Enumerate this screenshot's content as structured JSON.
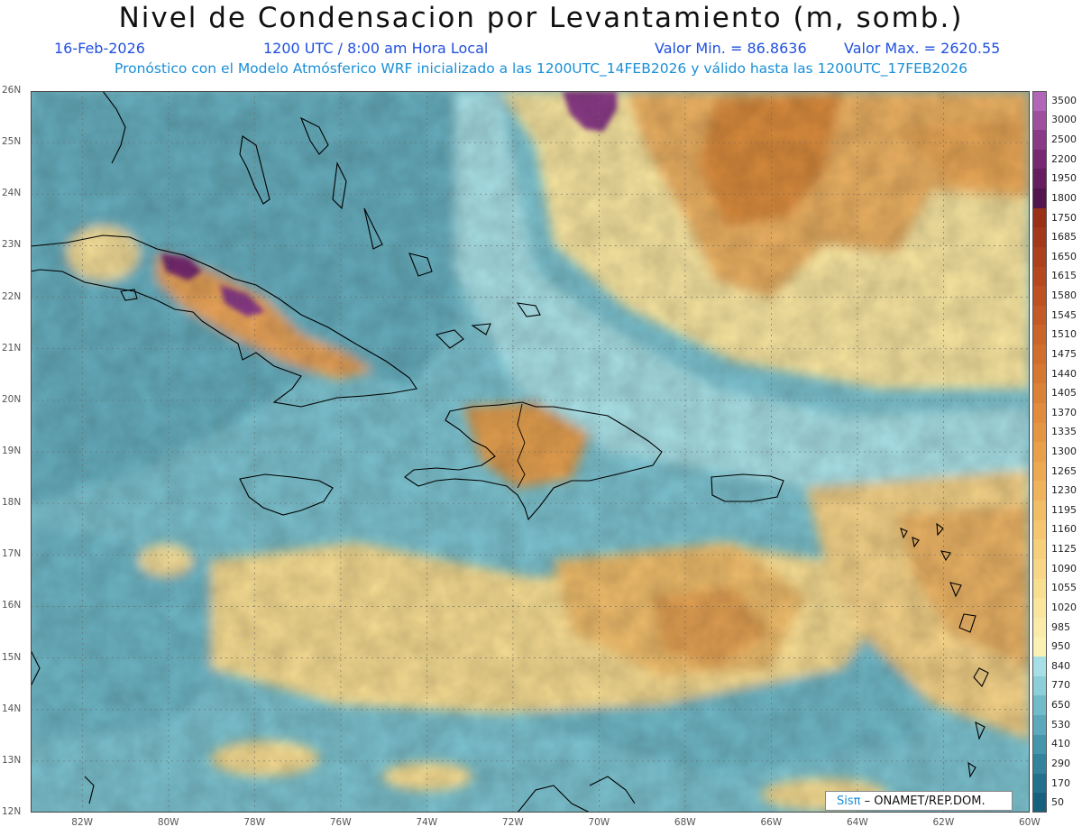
{
  "header": {
    "title": "Nivel de Condensacion por Levantamiento (m, somb.)",
    "date": "16-Feb-2026",
    "time": "1200 UTC / 8:00 am Hora Local",
    "min_label": "Valor Min. = 86.8636",
    "max_label": "Valor Max. = 2620.55",
    "subtitle": "Pronóstico con el Modelo Atmósferico WRF inicializado a las 1200UTC_14FEB2026 y válido hasta las  1200UTC_17FEB2026"
  },
  "map": {
    "lat_labels": [
      "26N",
      "25N",
      "24N",
      "23N",
      "22N",
      "21N",
      "20N",
      "19N",
      "18N",
      "17N",
      "16N",
      "15N",
      "14N",
      "13N",
      "12N"
    ],
    "lon_labels": [
      "82W",
      "80W",
      "78W",
      "76W",
      "74W",
      "72W",
      "70W",
      "68W",
      "66W",
      "64W",
      "62W",
      "60W"
    ],
    "lon_range": [
      -83.2,
      -60
    ],
    "lat_range": [
      12,
      26
    ],
    "gridlines": "dotted",
    "coastline_color": "#000000"
  },
  "colorbar": {
    "labels": [
      "3500",
      "3000",
      "2500",
      "2200",
      "1950",
      "1800",
      "1750",
      "1685",
      "1650",
      "1615",
      "1580",
      "1545",
      "1510",
      "1475",
      "1440",
      "1405",
      "1370",
      "1335",
      "1300",
      "1265",
      "1230",
      "1195",
      "1160",
      "1125",
      "1090",
      "1055",
      "1020",
      "985",
      "950",
      "840",
      "770",
      "650",
      "530",
      "410",
      "290",
      "170",
      "50"
    ],
    "colors": [
      "#b266b8",
      "#9e4f9e",
      "#8a3a87",
      "#772a72",
      "#651f60",
      "#521550",
      "#9b3019",
      "#a4381b",
      "#ad401d",
      "#b5481f",
      "#bd5122",
      "#c45a25",
      "#cb6428",
      "#d16e2c",
      "#d77830",
      "#dc8236",
      "#e18c3c",
      "#e59643",
      "#e9a04a",
      "#eca952",
      "#efb35b",
      "#f1bd65",
      "#f3c66f",
      "#f5cf7a",
      "#f7d785",
      "#f8df90",
      "#f9e69c",
      "#faeca8",
      "#fbf1b3",
      "#a6e0e6",
      "#8ccfd8",
      "#72bcc9",
      "#5ba9ba",
      "#4696ab",
      "#33839c",
      "#24718d",
      "#18617e"
    ]
  },
  "logo": {
    "sis": "Sisπ",
    "org": "– ONAMET/REP.DOM."
  }
}
